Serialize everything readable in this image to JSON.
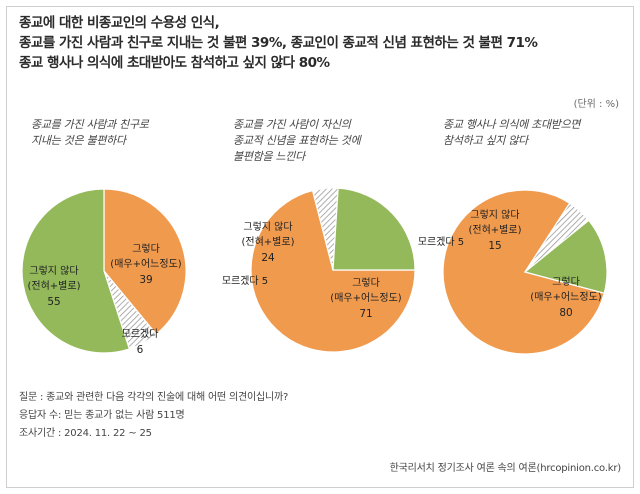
{
  "headline": {
    "line1": "종교에 대한 비종교인의 수용성 인식,",
    "line2": "종교를 가진 사람과 친구로 지내는 것 불편 39%, 종교인이 종교적 신념 표현하는 것 불편 71%",
    "line3": "종교 행사나 의식에 초대받아도 참석하고 싶지 않다 80%"
  },
  "unit": "(단위 : %)",
  "colors": {
    "yes": "#f09a4e",
    "no": "#93b95b",
    "dk_hatch": "#9a9a9a",
    "divider": "#ffffff"
  },
  "chart_data": [
    {
      "type": "pie",
      "title": [
        "종교를 가진 사람과 친구로",
        "지내는 것은 불편하다"
      ],
      "slices": [
        {
          "name": "그렇다 (매우+어느정도)",
          "label": [
            "그렇다",
            "(매우+어느정도)"
          ],
          "value": 39
        },
        {
          "name": "모르겠다",
          "label": [
            "모르겠다"
          ],
          "value": 6
        },
        {
          "name": "그렇지 않다 (전혀+별로)",
          "label": [
            "그렇지 않다",
            "(전혀+별로)"
          ],
          "value": 55
        }
      ]
    },
    {
      "type": "pie",
      "title": [
        "종교를 가진 사람이 자신의",
        "종교적 신념을 표현하는 것에",
        "불편함을 느낀다"
      ],
      "slices": [
        {
          "name": "그렇다 (매우+어느정도)",
          "label": [
            "그렇다",
            "(매우+어느정도)"
          ],
          "value": 71
        },
        {
          "name": "모르겠다",
          "label": [
            "모르겠다"
          ],
          "value": 5
        },
        {
          "name": "그렇지 않다 (전혀+별로)",
          "label": [
            "그렇지 않다",
            "(전혀+별로)"
          ],
          "value": 24
        }
      ]
    },
    {
      "type": "pie",
      "title": [
        "종교 행사나 의식에 초대받으면",
        "참석하고 싶지 않다"
      ],
      "slices": [
        {
          "name": "그렇다 (매우+어느정도)",
          "label": [
            "그렇다",
            "(매우+어느정도)"
          ],
          "value": 80
        },
        {
          "name": "모르겠다",
          "label": [
            "모르겠다"
          ],
          "value": 5
        },
        {
          "name": "그렇지 않다 (전혀+별로)",
          "label": [
            "그렇지 않다",
            "(전혀+별로)"
          ],
          "value": 15
        }
      ]
    }
  ],
  "notes": {
    "question": "질문 : 종교와 관련한 다음 각각의 진술에 대해 어떤 의견이십니까?",
    "respondents": "응답자 수: 믿는 종교가 없는 사람 511명",
    "period": "조사기간 : 2024. 11. 22 ~ 25"
  },
  "source": "한국리서치 정기조사 여론 속의 여론(hrcopinion.co.kr)"
}
